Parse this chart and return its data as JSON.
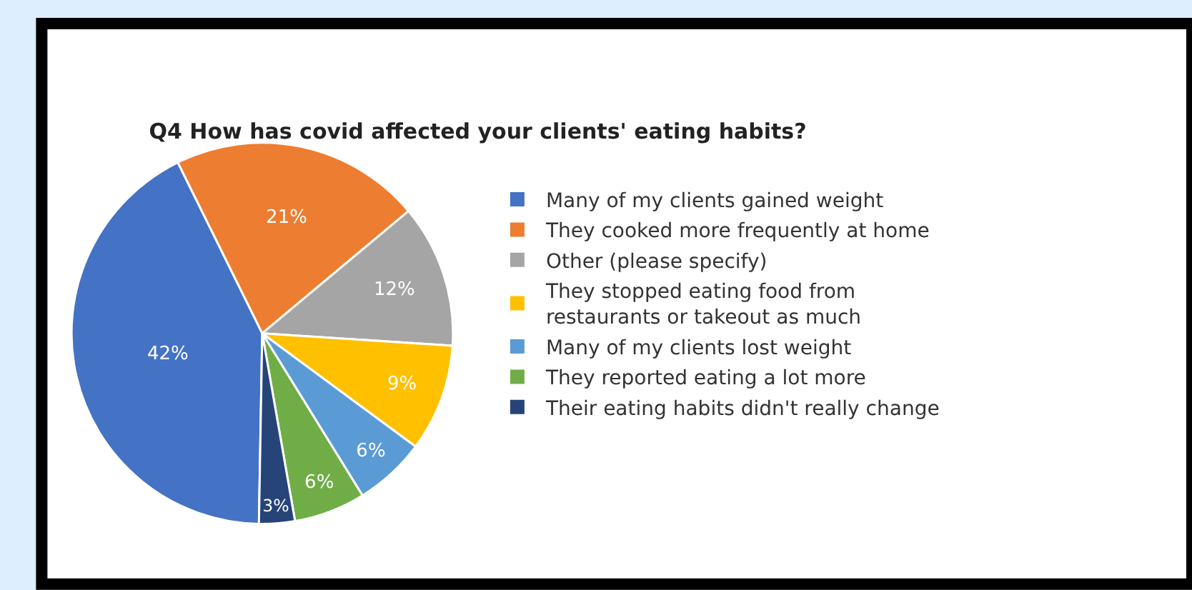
{
  "chart_data": {
    "type": "pie",
    "title": "Q4 How has covid affected your clients' eating habits?",
    "categories": [
      "Many of my clients gained weight",
      "They cooked more frequently at home",
      "Other (please specify)",
      "They stopped eating food from restaurants or takeout as much",
      "Many of my clients lost weight",
      "They reported eating a lot more",
      "Their eating habits didn't really change"
    ],
    "values": [
      42,
      21,
      12,
      9,
      6,
      6,
      3
    ],
    "colors": [
      "#4472c4",
      "#ed7d31",
      "#a5a5a5",
      "#ffc000",
      "#5b9bd5",
      "#70ad47",
      "#264478"
    ],
    "value_labels": [
      "42%",
      "21%",
      "12%",
      "9%",
      "6%",
      "6%",
      "3%"
    ],
    "legend": "right"
  }
}
